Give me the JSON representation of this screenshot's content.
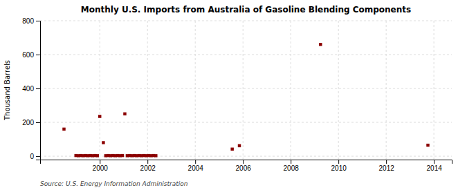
{
  "chart_data": {
    "type": "scatter",
    "title": "Monthly U.S. Imports from Australia of Gasoline Blending Components",
    "ylabel": "Thousand Barrels",
    "source": "Source: U.S. Energy Information Administration",
    "color": "#8b0000",
    "marker": "square",
    "grid": true,
    "xlim": [
      1997.5,
      2014.75
    ],
    "ylim": [
      -20,
      800
    ],
    "xticks": [
      2000,
      2002,
      2004,
      2006,
      2008,
      2010,
      2012,
      2014
    ],
    "yticks": [
      0,
      200,
      400,
      600,
      800
    ],
    "x": [
      1998.5,
      1999.0,
      1999.1,
      1999.2,
      1999.3,
      1999.4,
      1999.5,
      1999.6,
      1999.7,
      1999.8,
      1999.9,
      2000.0,
      2000.15,
      2000.25,
      2000.35,
      2000.45,
      2000.55,
      2000.65,
      2000.75,
      2000.85,
      2000.95,
      2001.05,
      2001.15,
      2001.25,
      2001.35,
      2001.45,
      2001.55,
      2001.65,
      2001.75,
      2001.85,
      2001.95,
      2002.05,
      2002.15,
      2002.25,
      2002.35,
      2005.55,
      2005.85,
      2009.25,
      2013.75
    ],
    "values": [
      160,
      4,
      3,
      4,
      3,
      4,
      3,
      4,
      3,
      4,
      3,
      235,
      80,
      3,
      4,
      3,
      4,
      3,
      4,
      3,
      4,
      250,
      3,
      4,
      3,
      4,
      3,
      4,
      3,
      4,
      3,
      4,
      3,
      4,
      3,
      42,
      62,
      660,
      65
    ]
  }
}
